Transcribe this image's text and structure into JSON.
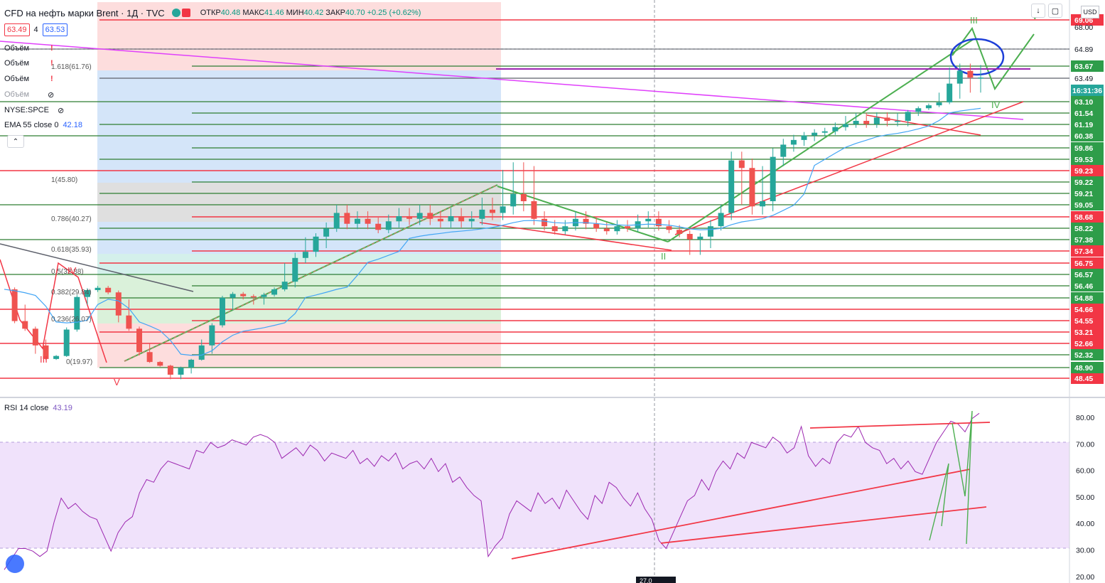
{
  "header": {
    "symbol": "CFD на нефть марки Brent · 1Д · TVC",
    "open_label": "ОТКР",
    "open": "40.48",
    "high_label": "МАКС",
    "high": "41.46",
    "low_label": "МИН",
    "low": "40.42",
    "close_label": "ЗАКР",
    "close": "40.70",
    "change": "+0.25 (+0.62%)",
    "bid": "63.49",
    "spread": "4",
    "ask": "63.53"
  },
  "indicators": {
    "volume_label": "Объём",
    "nyse": "NYSE:SPCE",
    "ema_label": "EMA 55 close 0",
    "ema_value": "42.18",
    "rsi_label": "RSI 14 close",
    "rsi_value": "43.19"
  },
  "currency": "USD",
  "time_stub": "27.0",
  "colors": {
    "red": "#f23645",
    "green": "#4caf50",
    "teal": "#26a69a",
    "magenta": "#e040fb",
    "blue": "#2196f3",
    "violet": "#9c27b0"
  },
  "chart_data": {
    "type": "candlestick",
    "price_scale": [
      48.45,
      48.9,
      52.32,
      52.66,
      53.21,
      54.55,
      54.66,
      54.88,
      56.46,
      56.57,
      56.75,
      57.34,
      57.38,
      58.22,
      58.68,
      59.05,
      59.21,
      59.22,
      59.23,
      59.53,
      59.86,
      60.38,
      61.19,
      61.54,
      63.1,
      63.49,
      63.67,
      64.89,
      69.06
    ],
    "price_scale_top": "68.00",
    "last_price": "63.49",
    "countdown": "16:31:36",
    "fib_levels": [
      {
        "label": "1.618(61.76)"
      },
      {
        "label": "1(45.80)"
      },
      {
        "label": "0.786(40.27)"
      },
      {
        "label": "0.618(35.93)"
      },
      {
        "label": "0.5(32.88)"
      },
      {
        "label": "0.382(29.84)"
      },
      {
        "label": "0.236(26.07)"
      },
      {
        "label": "0(19.97)"
      }
    ],
    "wave_labels": [
      "III",
      "IV",
      "V",
      "II",
      "III",
      "IV",
      "V"
    ],
    "rsi": {
      "ticks": [
        "80.00",
        "70.00",
        "60.00",
        "50.00",
        "40.00",
        "30.00",
        "20.00"
      ],
      "values": [
        22,
        26,
        30,
        30,
        29,
        27,
        29,
        40,
        49,
        45,
        47,
        44,
        42,
        41,
        35,
        29,
        36,
        40,
        42,
        51,
        56,
        55,
        60,
        63,
        62,
        61,
        60,
        67,
        66,
        70,
        68,
        69,
        71,
        70,
        69,
        72,
        73,
        72,
        70,
        64,
        66,
        68,
        65,
        69,
        67,
        63,
        66,
        65,
        64,
        67,
        62,
        64,
        61,
        65,
        63,
        66,
        60,
        62,
        63,
        60,
        64,
        59,
        62,
        55,
        57,
        53,
        50,
        48,
        27,
        31,
        34,
        43,
        48,
        46,
        44,
        51,
        47,
        49,
        45,
        52,
        48,
        44,
        41,
        50,
        47,
        55,
        53,
        49,
        46,
        51,
        45,
        41,
        33,
        30,
        36,
        42,
        48,
        50,
        56,
        52,
        59,
        63,
        60,
        66,
        64,
        70,
        69,
        68,
        72,
        70,
        66,
        68,
        76,
        65,
        61,
        64,
        62,
        70,
        73,
        72,
        76,
        70,
        68,
        67,
        62,
        64,
        60,
        63,
        59,
        58,
        64,
        70,
        74,
        78,
        77,
        74,
        79,
        81
      ]
    },
    "price_path": [
      56.0,
      54.5,
      53.6,
      52.6,
      51.2,
      52.0,
      53.5,
      55.0,
      55.9,
      56.2,
      55.6,
      54.6,
      53.6,
      52.4,
      50.4,
      49.4,
      48.6,
      48.9,
      51.0,
      52.6,
      54.0,
      54.9,
      55.4,
      55.1,
      55.0,
      55.3,
      56.0,
      56.5,
      57.0,
      57.3,
      57.6,
      58.2,
      58.8,
      58.4,
      58.6,
      58.4,
      58.1,
      58.5,
      58.7,
      58.6,
      58.8,
      58.6,
      58.5,
      58.7,
      58.5,
      58.6,
      58.9,
      58.8,
      59.0,
      59.2,
      59.1,
      58.6,
      58.3,
      58.0,
      58.3,
      58.6,
      58.4,
      58.2,
      58.0,
      58.3,
      58.2,
      58.5,
      58.6,
      58.3,
      58.1,
      57.8,
      57.4,
      57.6,
      58.3,
      58.8,
      59.5,
      59.3,
      59.0,
      59.1,
      59.6,
      60.0,
      60.2,
      60.4,
      60.6,
      60.7,
      61.0,
      61.2,
      61.3,
      61.2,
      61.4,
      61.3,
      61.3,
      61.7,
      62.2,
      62.6,
      63.0,
      63.4,
      63.6,
      63.5,
      63.5
    ]
  }
}
